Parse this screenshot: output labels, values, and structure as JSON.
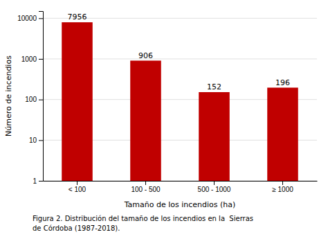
{
  "chart_data": {
    "type": "bar",
    "categories": [
      "< 100",
      "100 - 500",
      "500 - 1000",
      "≥ 1000"
    ],
    "values": [
      7956,
      906,
      152,
      196
    ],
    "color": "#c00000",
    "ylabel": "Número de incendios",
    "xlabel": "Tamaño de los incendios (ha)",
    "caption": [
      "Figura 2. Distribución del tamaño de los incendios en la  Sierras",
      "de Córdoba (1987-2018)."
    ],
    "log": "y",
    "ylim": [
      1,
      15000
    ],
    "yticks": [
      1,
      10,
      100,
      1000,
      10000
    ],
    "grid": true,
    "data_labels": true
  }
}
